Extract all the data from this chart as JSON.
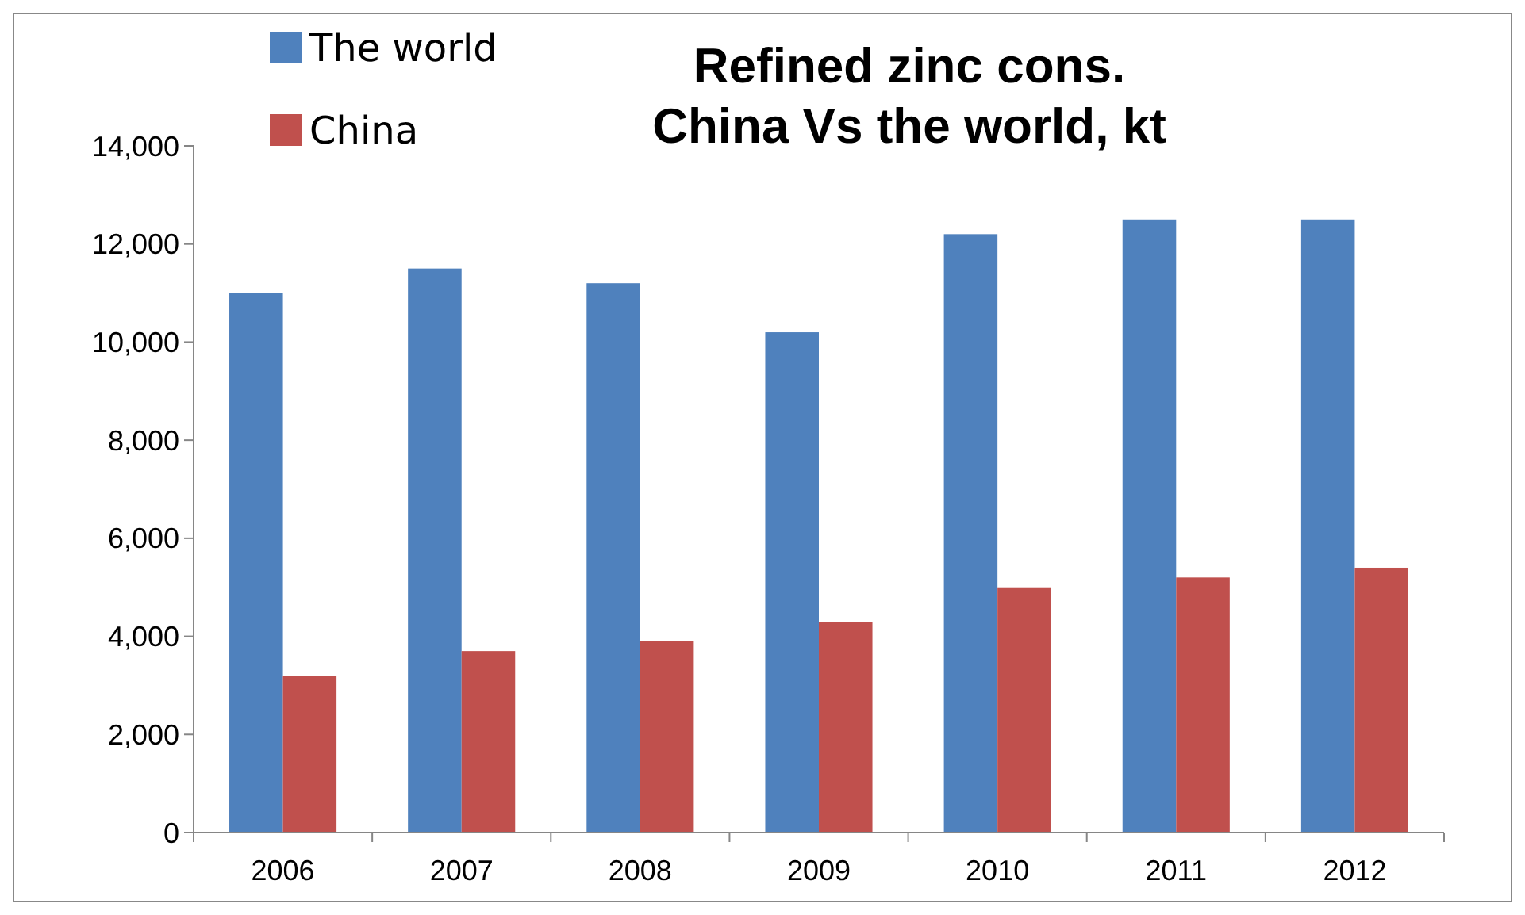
{
  "chart_data": {
    "type": "bar",
    "title": "Refined zinc cons.\nChina Vs the world, kt",
    "categories": [
      "2006",
      "2007",
      "2008",
      "2009",
      "2010",
      "2011",
      "2012"
    ],
    "series": [
      {
        "name": "The world",
        "color": "#4f81bd",
        "values": [
          11000,
          11500,
          11200,
          10200,
          12200,
          12500,
          12500
        ]
      },
      {
        "name": "China",
        "color": "#c0504d",
        "values": [
          3200,
          3700,
          3900,
          4300,
          5000,
          5200,
          5400
        ]
      }
    ],
    "ylim": [
      0,
      14000
    ],
    "yticks": [
      {
        "value": 0,
        "label": "0"
      },
      {
        "value": 2000,
        "label": "2,000"
      },
      {
        "value": 4000,
        "label": "4,000"
      },
      {
        "value": 6000,
        "label": "6,000"
      },
      {
        "value": 8000,
        "label": "8,000"
      },
      {
        "value": 10000,
        "label": "10,000"
      },
      {
        "value": 12000,
        "label": "12,000"
      },
      {
        "value": 14000,
        "label": "14,000"
      }
    ],
    "grid": false,
    "legend": "top left"
  }
}
